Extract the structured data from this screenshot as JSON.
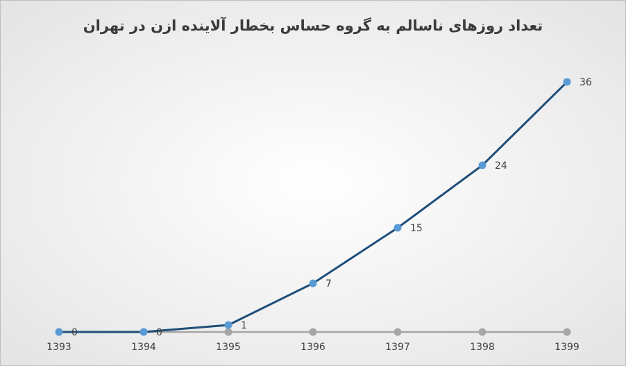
{
  "chart_data": {
    "type": "line",
    "title": "تعداد روزهای ناسالم به گروه حساس بخطار آلاینده ازن در تهران",
    "categories": [
      "1393",
      "1394",
      "1395",
      "1396",
      "1397",
      "1398",
      "1399"
    ],
    "series": [
      {
        "color": "#1f4e79",
        "values": [
          0,
          0,
          1,
          7,
          15,
          24,
          36
        ]
      }
    ],
    "ylim": [
      0,
      40
    ]
  }
}
